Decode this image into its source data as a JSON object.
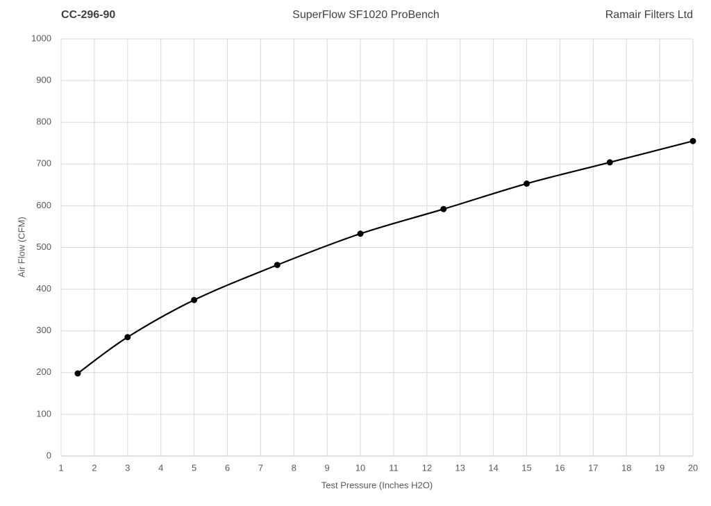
{
  "chart_data": {
    "type": "line",
    "title": "SuperFlow SF1020 ProBench",
    "left_label": "CC-296-90",
    "right_label": "Ramair Filters Ltd",
    "x_label": "Test Pressure (Inches H2O)",
    "y_label": "Air Flow (CFM)",
    "x": [
      1.5,
      3,
      5,
      7.5,
      10,
      12.5,
      15,
      17.5,
      20
    ],
    "values": [
      198,
      285,
      374,
      458,
      533,
      592,
      653,
      704,
      755
    ],
    "color": "#000000",
    "smooth": true,
    "markers": true,
    "xlim": [
      1,
      20
    ],
    "xticks": [
      1,
      2,
      3,
      4,
      5,
      6,
      7,
      8,
      9,
      10,
      11,
      12,
      13,
      14,
      15,
      16,
      17,
      18,
      19,
      20
    ],
    "ylim": [
      0,
      1000
    ],
    "yticks": [
      0,
      100,
      200,
      300,
      400,
      500,
      600,
      700,
      800,
      900,
      1000
    ],
    "grid": true
  }
}
